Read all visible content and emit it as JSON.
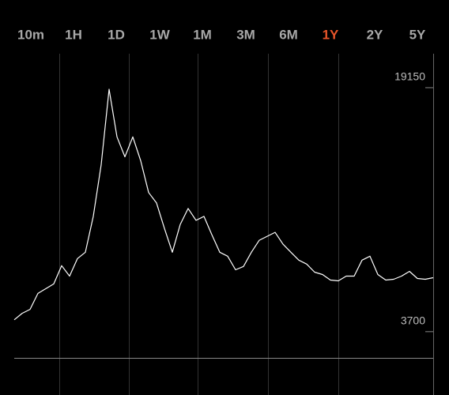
{
  "chart_data": {
    "type": "line",
    "tabs": [
      "10m",
      "1H",
      "1D",
      "1W",
      "1M",
      "3M",
      "6M",
      "1Y",
      "2Y",
      "5Y"
    ],
    "active_tab": 7,
    "color": "#ffffff",
    "values": [
      4450,
      4860,
      5110,
      6120,
      6420,
      6720,
      7880,
      7220,
      8330,
      8730,
      11000,
      14270,
      19050,
      16030,
      14770,
      16030,
      14520,
      12510,
      11850,
      10240,
      8730,
      10490,
      11500,
      10750,
      11000,
      9840,
      8730,
      8480,
      7620,
      7830,
      8730,
      9490,
      9740,
      9990,
      9240,
      8730,
      8230,
      7980,
      7470,
      7320,
      6970,
      6920,
      7220,
      7220,
      8230,
      8480,
      7320,
      6970,
      7020,
      7220,
      7520,
      7070,
      7020,
      7120
    ],
    "ylim": [
      2040,
      21300
    ],
    "yticks": [
      3700,
      19150
    ]
  }
}
